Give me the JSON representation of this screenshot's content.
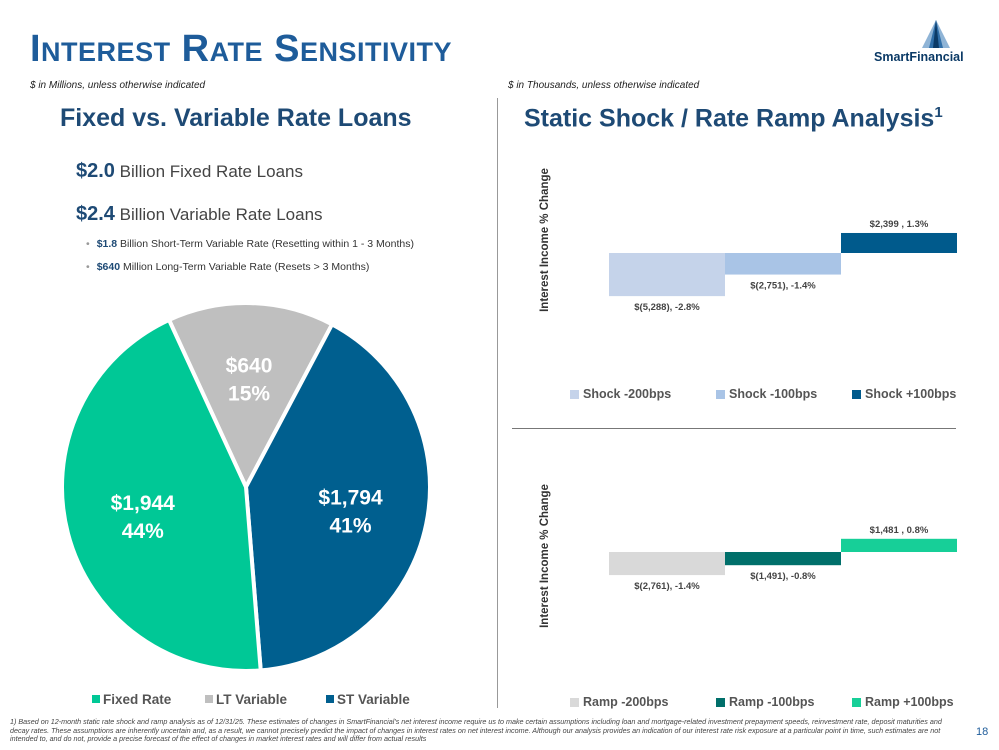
{
  "page": {
    "title": "Interest Rate Sensitivity",
    "logo_text": "SmartFinancial",
    "left_note": "$ in Millions, unless otherwise indicated",
    "right_note": "$ in Thousands, unless otherwise indicated",
    "left_heading": "Fixed vs. Variable Rate Loans",
    "right_heading": "Static Shock / Rate Ramp Analysis",
    "right_heading_sup": "1",
    "footnote": "1) Based on 12-month static rate shock and ramp analysis as of 12/31/25. These estimates of changes in SmartFinancial's net interest income require us to make certain assumptions including loan and mortgage-related investment prepayment speeds, reinvestment rate, deposit maturities and decay rates. These assumptions are inherently uncertain and, as a result, we cannot precisely predict the impact of changes in interest rates on net interest income. Although our analysis provides an indication of our interest rate risk exposure at a particular point in time, such estimates are not intended to, and do not, provide a precise forecast of the effect of changes in market interest rates and will differ from actual results",
    "page_number": "18"
  },
  "summary": {
    "fixed_value": "$2.0",
    "fixed_text": "Billion Fixed Rate Loans",
    "variable_value": "$2.4",
    "variable_text": "Billion Variable Rate Loans",
    "bullets": [
      {
        "value": "$1.8",
        "text": "Billion Short-Term Variable Rate (Resetting within 1 - 3 Months)"
      },
      {
        "value": "$640",
        "text": "Million Long-Term Variable Rate (Resets > 3 Months)"
      }
    ]
  },
  "colors": {
    "title": "#1e5c9a",
    "heading": "#1e4a75",
    "fixed": "#00c896",
    "lt_variable": "#bfbfbf",
    "st_variable": "#005f8f"
  },
  "chart_data": [
    {
      "type": "pie",
      "title": "Fixed vs. Variable Rate Loans",
      "series": [
        {
          "name": "Fixed Rate",
          "value": 1944,
          "label": "$1,944",
          "pct_label": "44%",
          "color": "#00c896"
        },
        {
          "name": "LT Variable",
          "value": 640,
          "label": "$640",
          "pct_label": "15%",
          "color": "#bfbfbf"
        },
        {
          "name": "ST Variable",
          "value": 1794,
          "label": "$1,794",
          "pct_label": "41%",
          "color": "#005f8f"
        }
      ],
      "legend": "bottom"
    },
    {
      "type": "bar",
      "ylabel": "Interest Income % Change",
      "categories": [
        "Shock -200bps",
        "Shock -100bps",
        "Shock +100bps"
      ],
      "values": [
        -2.8,
        -1.4,
        1.3
      ],
      "data_labels": [
        "$(5,288), -2.8%",
        "$(2,751), -1.4%",
        "$2,399 , 1.3%"
      ],
      "colors": [
        "#c5d3ea",
        "#a9c4e6",
        "#005a8c"
      ],
      "ylim": [
        -3.0,
        1.6
      ],
      "legend": "bottom"
    },
    {
      "type": "bar",
      "ylabel": "Interest Income % Change",
      "categories": [
        "Ramp -200bps",
        "Ramp -100bps",
        "Ramp +100bps"
      ],
      "values": [
        -1.4,
        -0.8,
        0.8
      ],
      "data_labels": [
        "$(2,761), -1.4%",
        "$(1,491), -0.8%",
        "$1,481 , 0.8%"
      ],
      "colors": [
        "#d9d9d9",
        "#006f6a",
        "#17cf98"
      ],
      "ylim": [
        -1.4,
        0.9
      ],
      "legend": "bottom"
    }
  ]
}
